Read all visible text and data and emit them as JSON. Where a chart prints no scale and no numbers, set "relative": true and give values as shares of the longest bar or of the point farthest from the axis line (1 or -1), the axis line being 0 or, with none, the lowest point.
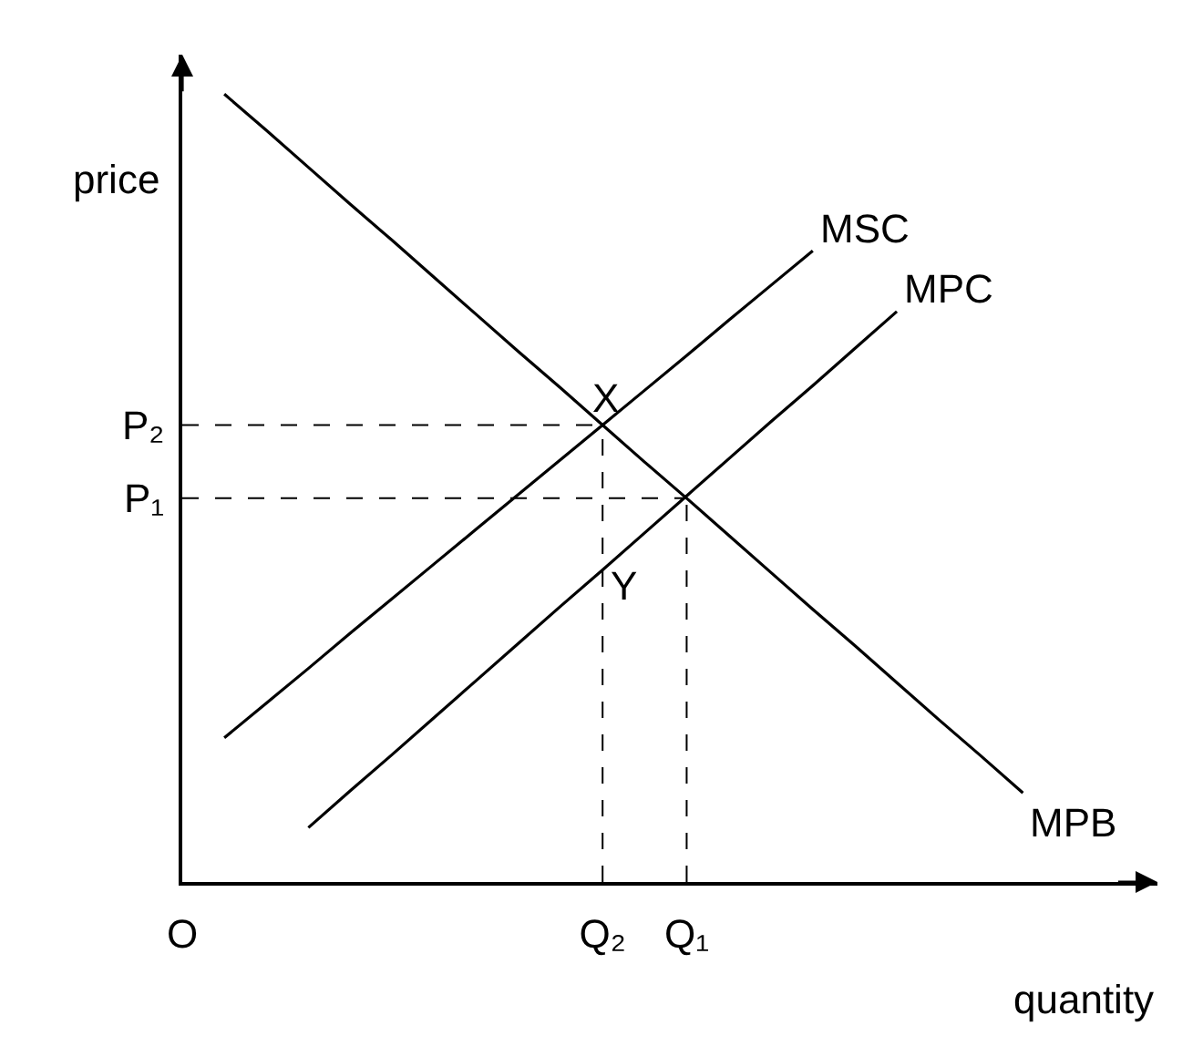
{
  "chart_data": {
    "type": "line",
    "relative": true,
    "xlabel": "quantity",
    "ylabel": "price",
    "categories": [
      "O",
      null,
      null,
      null,
      null,
      null,
      null,
      null,
      null,
      null,
      "Q₂",
      null,
      "Q₁",
      null,
      null,
      null,
      null,
      null,
      null,
      null,
      null,
      null,
      null,
      null
    ],
    "series": [
      {
        "name": "MSC",
        "color": "#000000",
        "values": [
          null,
          0.183,
          0.227,
          0.271,
          0.316,
          0.36,
          0.404,
          0.448,
          0.492,
          0.536,
          0.58,
          0.624,
          0.668,
          0.713,
          0.757,
          0.801,
          null,
          null,
          null,
          null,
          null,
          null,
          null,
          null
        ]
      },
      {
        "name": "MPC",
        "color": "#000000",
        "values": [
          null,
          null,
          null,
          0.069,
          0.116,
          0.162,
          0.209,
          0.256,
          0.303,
          0.35,
          0.396,
          0.443,
          0.49,
          0.537,
          0.584,
          0.63,
          0.677,
          0.724,
          null,
          null,
          null,
          null,
          null,
          null
        ]
      },
      {
        "name": "MPB",
        "color": "#000000",
        "values": [
          null,
          1.0,
          0.954,
          0.907,
          0.86,
          0.814,
          0.767,
          0.72,
          0.673,
          0.627,
          0.58,
          0.533,
          0.487,
          0.44,
          0.393,
          0.346,
          0.3,
          0.253,
          0.206,
          0.16,
          0.113,
          null,
          null,
          null
        ]
      }
    ],
    "ref_lines": [
      {
        "axis": "y",
        "value": 0.58,
        "label": "P₂",
        "color": "#000000",
        "line_style": "dashed"
      },
      {
        "axis": "y",
        "value": 0.487,
        "label": "P₁",
        "color": "#000000",
        "line_style": "dashed"
      },
      {
        "axis": "x",
        "value": "Q₂",
        "color": "#000000",
        "line_style": "dashed"
      },
      {
        "axis": "x",
        "value": "Q₁",
        "color": "#000000",
        "line_style": "dashed"
      }
    ],
    "annotations": [
      {
        "text": "X",
        "x": "Q₂",
        "y": 0.58
      },
      {
        "text": "Y",
        "x": "Q₂",
        "y": 0.4
      }
    ],
    "legend": false,
    "marker": "none"
  }
}
